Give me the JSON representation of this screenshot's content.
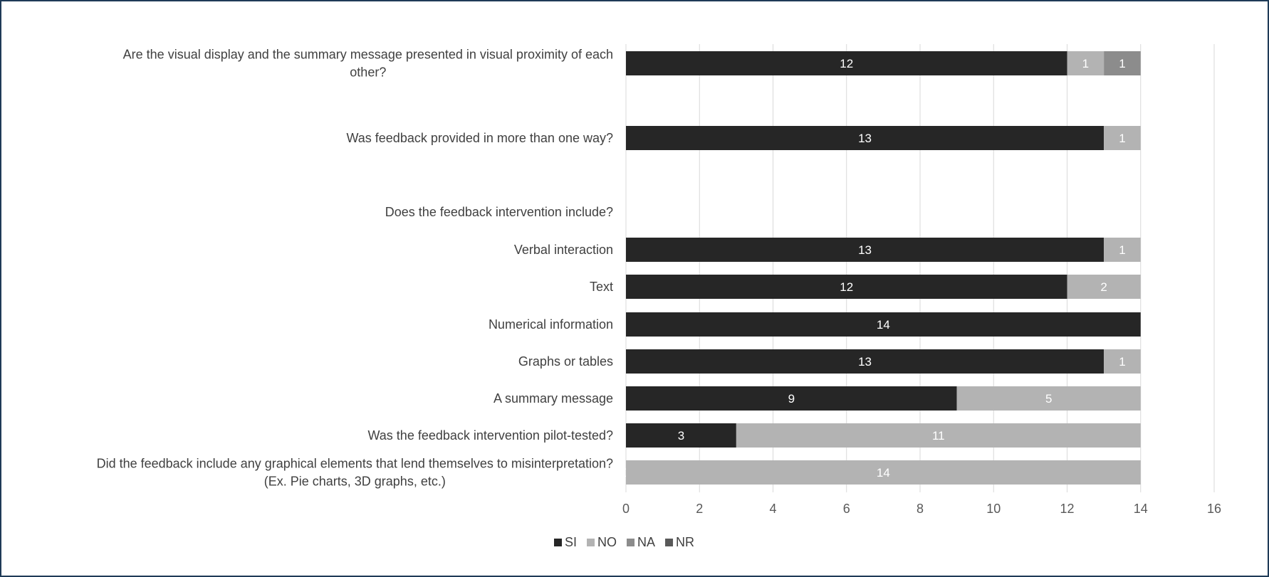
{
  "chart_data": {
    "type": "bar",
    "orientation": "horizontal",
    "stacked": true,
    "title": "",
    "xlabel": "",
    "ylabel": "",
    "xlim": [
      0,
      16
    ],
    "x_ticks": [
      0,
      2,
      4,
      6,
      8,
      10,
      12,
      14,
      16
    ],
    "grid": "vertical",
    "legend_position": "bottom",
    "categories": [
      [
        "Are the visual display and the summary message presented in visual proximity of each",
        "other?"
      ],
      [
        "Was feedback provided in more than one way?"
      ],
      [
        "Does the feedback intervention include?"
      ],
      [
        "Verbal interaction"
      ],
      [
        "Text"
      ],
      [
        "Numerical information"
      ],
      [
        "Graphs or tables"
      ],
      [
        "A summary message"
      ],
      [
        "Was the feedback intervention pilot-tested?"
      ],
      [
        "Did the feedback include any graphical elements that lend themselves to misinterpretation?",
        "(Ex. Pie charts, 3D graphs, etc.)"
      ]
    ],
    "series": [
      {
        "name": "SI",
        "color": "#262626",
        "values": [
          12,
          13,
          null,
          13,
          12,
          14,
          13,
          9,
          3,
          0
        ]
      },
      {
        "name": "NO",
        "color": "#b3b3b3",
        "values": [
          1,
          1,
          null,
          1,
          2,
          null,
          1,
          5,
          11,
          14
        ]
      },
      {
        "name": "NA",
        "color": "#8c8c8c",
        "values": [
          1,
          null,
          null,
          null,
          null,
          null,
          null,
          null,
          null,
          null
        ]
      },
      {
        "name": "NR",
        "color": "#595959",
        "values": [
          null,
          null,
          null,
          null,
          null,
          null,
          null,
          null,
          null,
          null
        ]
      }
    ]
  }
}
